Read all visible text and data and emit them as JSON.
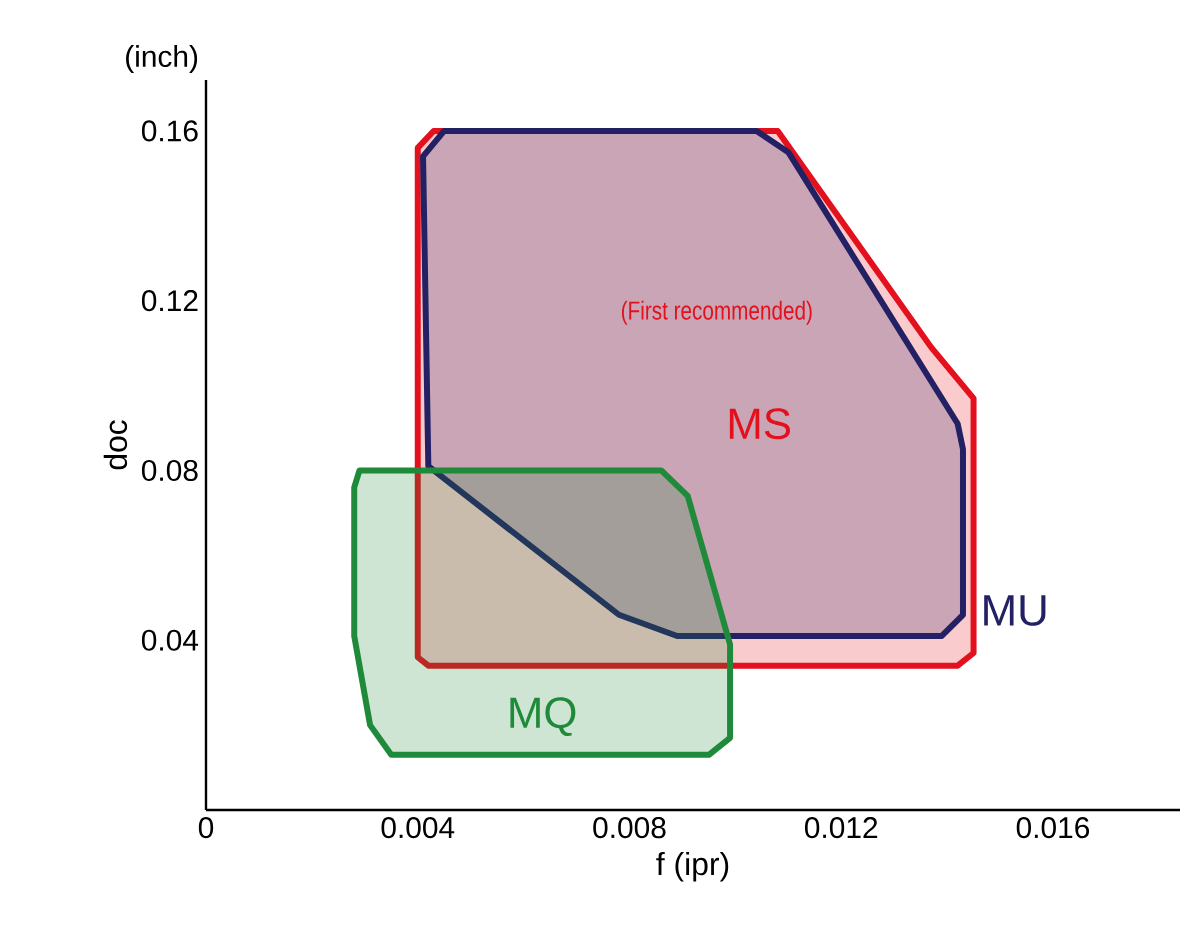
{
  "chart_data": {
    "type": "area",
    "xlabel": "f (ipr)",
    "ylabel": "doc",
    "xlim": [
      0,
      0.0184
    ],
    "ylim": [
      0,
      0.172
    ],
    "xticks": [
      {
        "value": 0,
        "label": "0"
      },
      0.004,
      0.008,
      0.012,
      0.016
    ],
    "yticks": [
      0.04,
      0.08,
      0.12,
      0.16
    ],
    "annotations": [
      "(inch)",
      "(First recommended)"
    ],
    "series": [
      {
        "name": "MS",
        "color": "#e3101d",
        "x": [
          0.004,
          0.004,
          0.0042,
          0.0142,
          0.0145,
          0.0145,
          0.0137,
          0.0108,
          0.0043,
          0.004
        ],
        "values": [
          0.156,
          0.036,
          0.034,
          0.034,
          0.037,
          0.097,
          0.109,
          0.16,
          0.16,
          0.156
        ]
      },
      {
        "name": "MU",
        "color": "#232064",
        "x": [
          0.0041,
          0.0045,
          0.0104,
          0.011,
          0.0142,
          0.0143,
          0.0143,
          0.0139,
          0.0089,
          0.0078,
          0.0042,
          0.0041
        ],
        "values": [
          0.154,
          0.16,
          0.16,
          0.155,
          0.091,
          0.085,
          0.046,
          0.041,
          0.041,
          0.046,
          0.081,
          0.154
        ]
      },
      {
        "name": "MQ",
        "color": "#1f8a3a",
        "x": [
          0.0029,
          0.0086,
          0.0091,
          0.0099,
          0.0099,
          0.0095,
          0.0035,
          0.0031,
          0.0028,
          0.0028,
          0.0029
        ],
        "values": [
          0.08,
          0.08,
          0.074,
          0.039,
          0.017,
          0.013,
          0.013,
          0.02,
          0.041,
          0.076,
          0.08
        ]
      }
    ]
  }
}
